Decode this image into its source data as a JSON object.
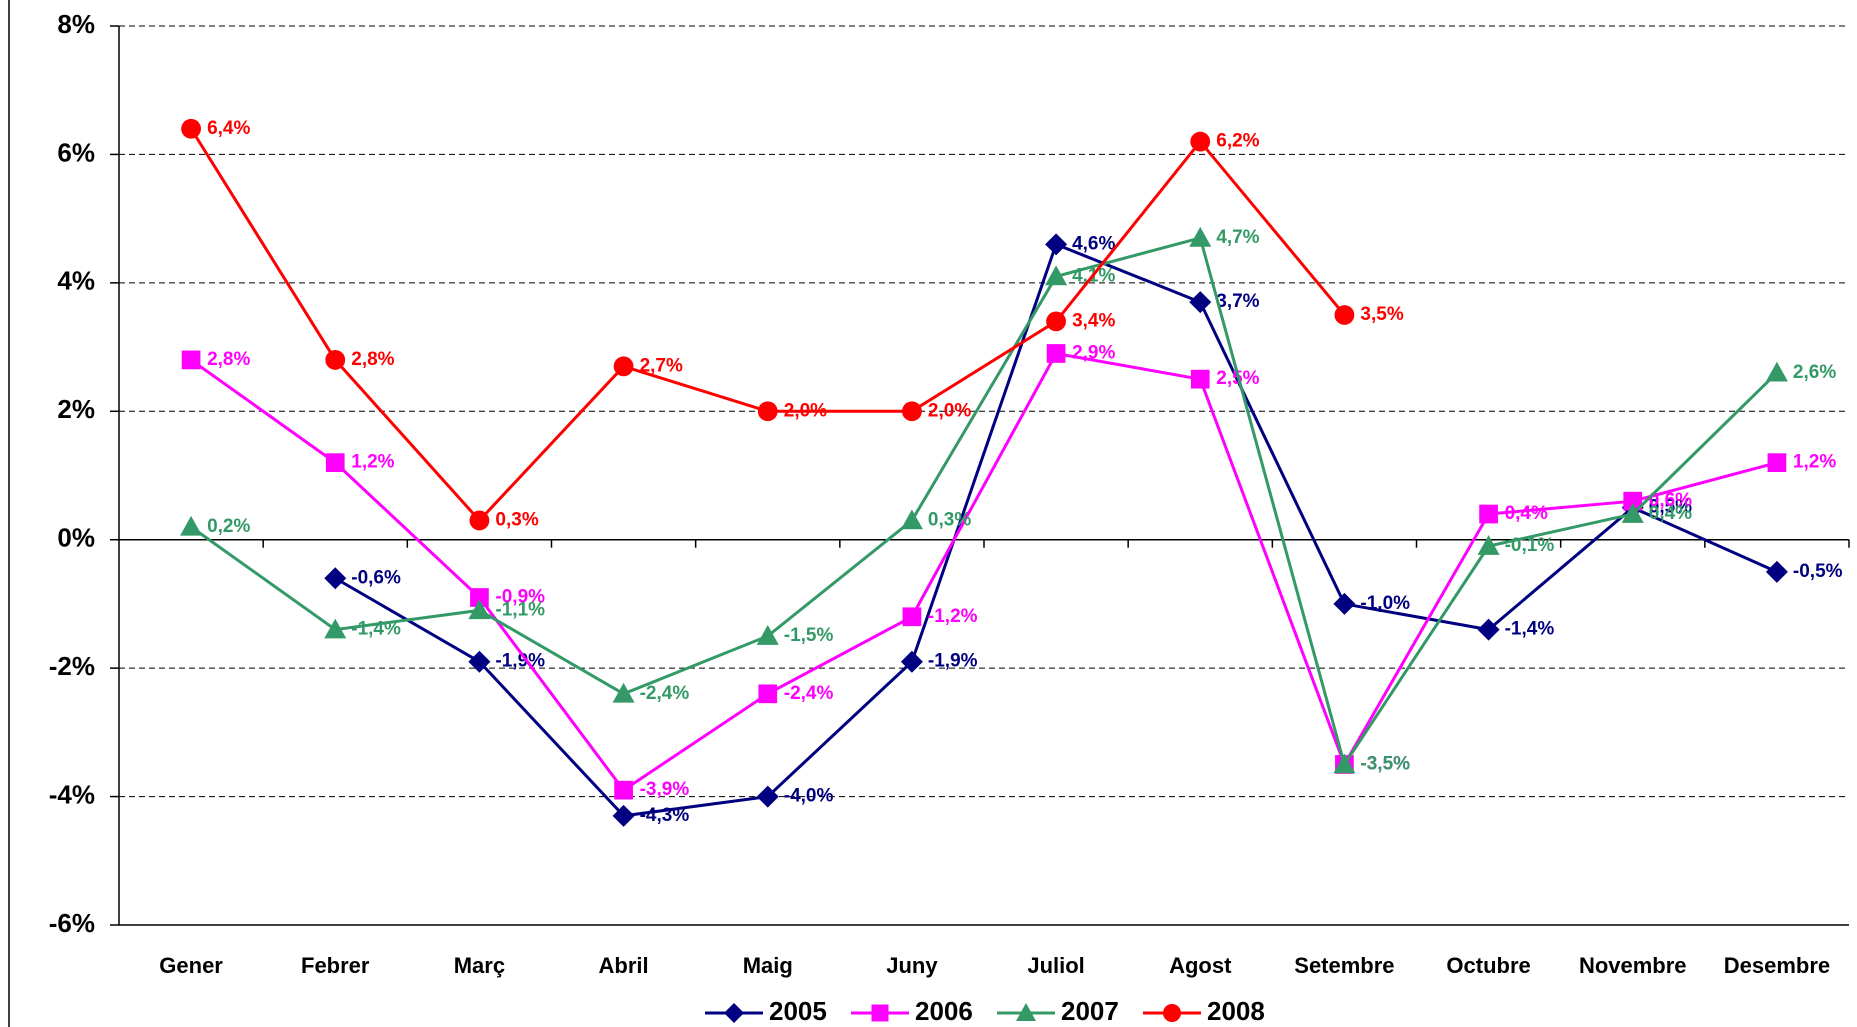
{
  "chart_data": {
    "type": "line",
    "categories": [
      "Gener",
      "Febrer",
      "Març",
      "Abril",
      "Maig",
      "Juny",
      "Juliol",
      "Agost",
      "Setembre",
      "Octubre",
      "Novembre",
      "Desembre"
    ],
    "series": [
      {
        "name": "2005",
        "color": "#000080",
        "marker": "diamond",
        "values": [
          null,
          -0.6,
          -1.9,
          -4.3,
          -4.0,
          -1.9,
          4.6,
          3.7,
          -1.0,
          -1.4,
          0.5,
          -0.5
        ],
        "value_labels": [
          null,
          "-0,6%",
          "-1,9%",
          "-4,3%",
          "-4,0%",
          "-1,9%",
          "4,6%",
          "3,7%",
          "-1,0%",
          "-1,4%",
          "0,5%",
          "-0,5%"
        ]
      },
      {
        "name": "2006",
        "color": "#ff00ff",
        "marker": "square",
        "values": [
          2.8,
          1.2,
          -0.9,
          -3.9,
          -2.4,
          -1.2,
          2.9,
          2.5,
          -3.5,
          0.4,
          0.6,
          1.2
        ],
        "value_labels": [
          "2,8%",
          "1,2%",
          "-0,9%",
          "-3,9%",
          "-2,4%",
          "-1,2%",
          "2,9%",
          "2,5%",
          "-3,5%",
          "0,4%",
          "0,6%",
          "1,2%"
        ]
      },
      {
        "name": "2007",
        "color": "#339966",
        "marker": "triangle",
        "values": [
          0.2,
          -1.4,
          -1.1,
          -2.4,
          -1.5,
          0.3,
          4.1,
          4.7,
          -3.5,
          -0.1,
          0.4,
          2.6
        ],
        "value_labels": [
          "0,2%",
          "-1,4%",
          "-1,1%",
          "-2,4%",
          "-1,5%",
          "0,3%",
          "4,1%",
          "4,7%",
          "-3,5%",
          "-0,1%",
          "0,4%",
          "2,6%"
        ]
      },
      {
        "name": "2008",
        "color": "#ff0000",
        "marker": "circle",
        "values": [
          6.4,
          2.8,
          0.3,
          2.7,
          2.0,
          2.0,
          3.4,
          6.2,
          3.5,
          null,
          null,
          null
        ],
        "value_labels": [
          "6,4%",
          "2,8%",
          "0,3%",
          "2,7%",
          "2,0%",
          "2,0%",
          "3,4%",
          "6,2%",
          "3,5%",
          null,
          null,
          null
        ]
      }
    ],
    "ylim": [
      -6,
      8
    ],
    "yticks": [
      {
        "value": -6,
        "label": "-6%"
      },
      {
        "value": -4,
        "label": "-4%"
      },
      {
        "value": -2,
        "label": "-2%"
      },
      {
        "value": 0,
        "label": "0%"
      },
      {
        "value": 2,
        "label": "2%"
      },
      {
        "value": 4,
        "label": "4%"
      },
      {
        "value": 6,
        "label": "6%"
      },
      {
        "value": 8,
        "label": "8%"
      }
    ],
    "grid": true,
    "legend": "bottom"
  }
}
